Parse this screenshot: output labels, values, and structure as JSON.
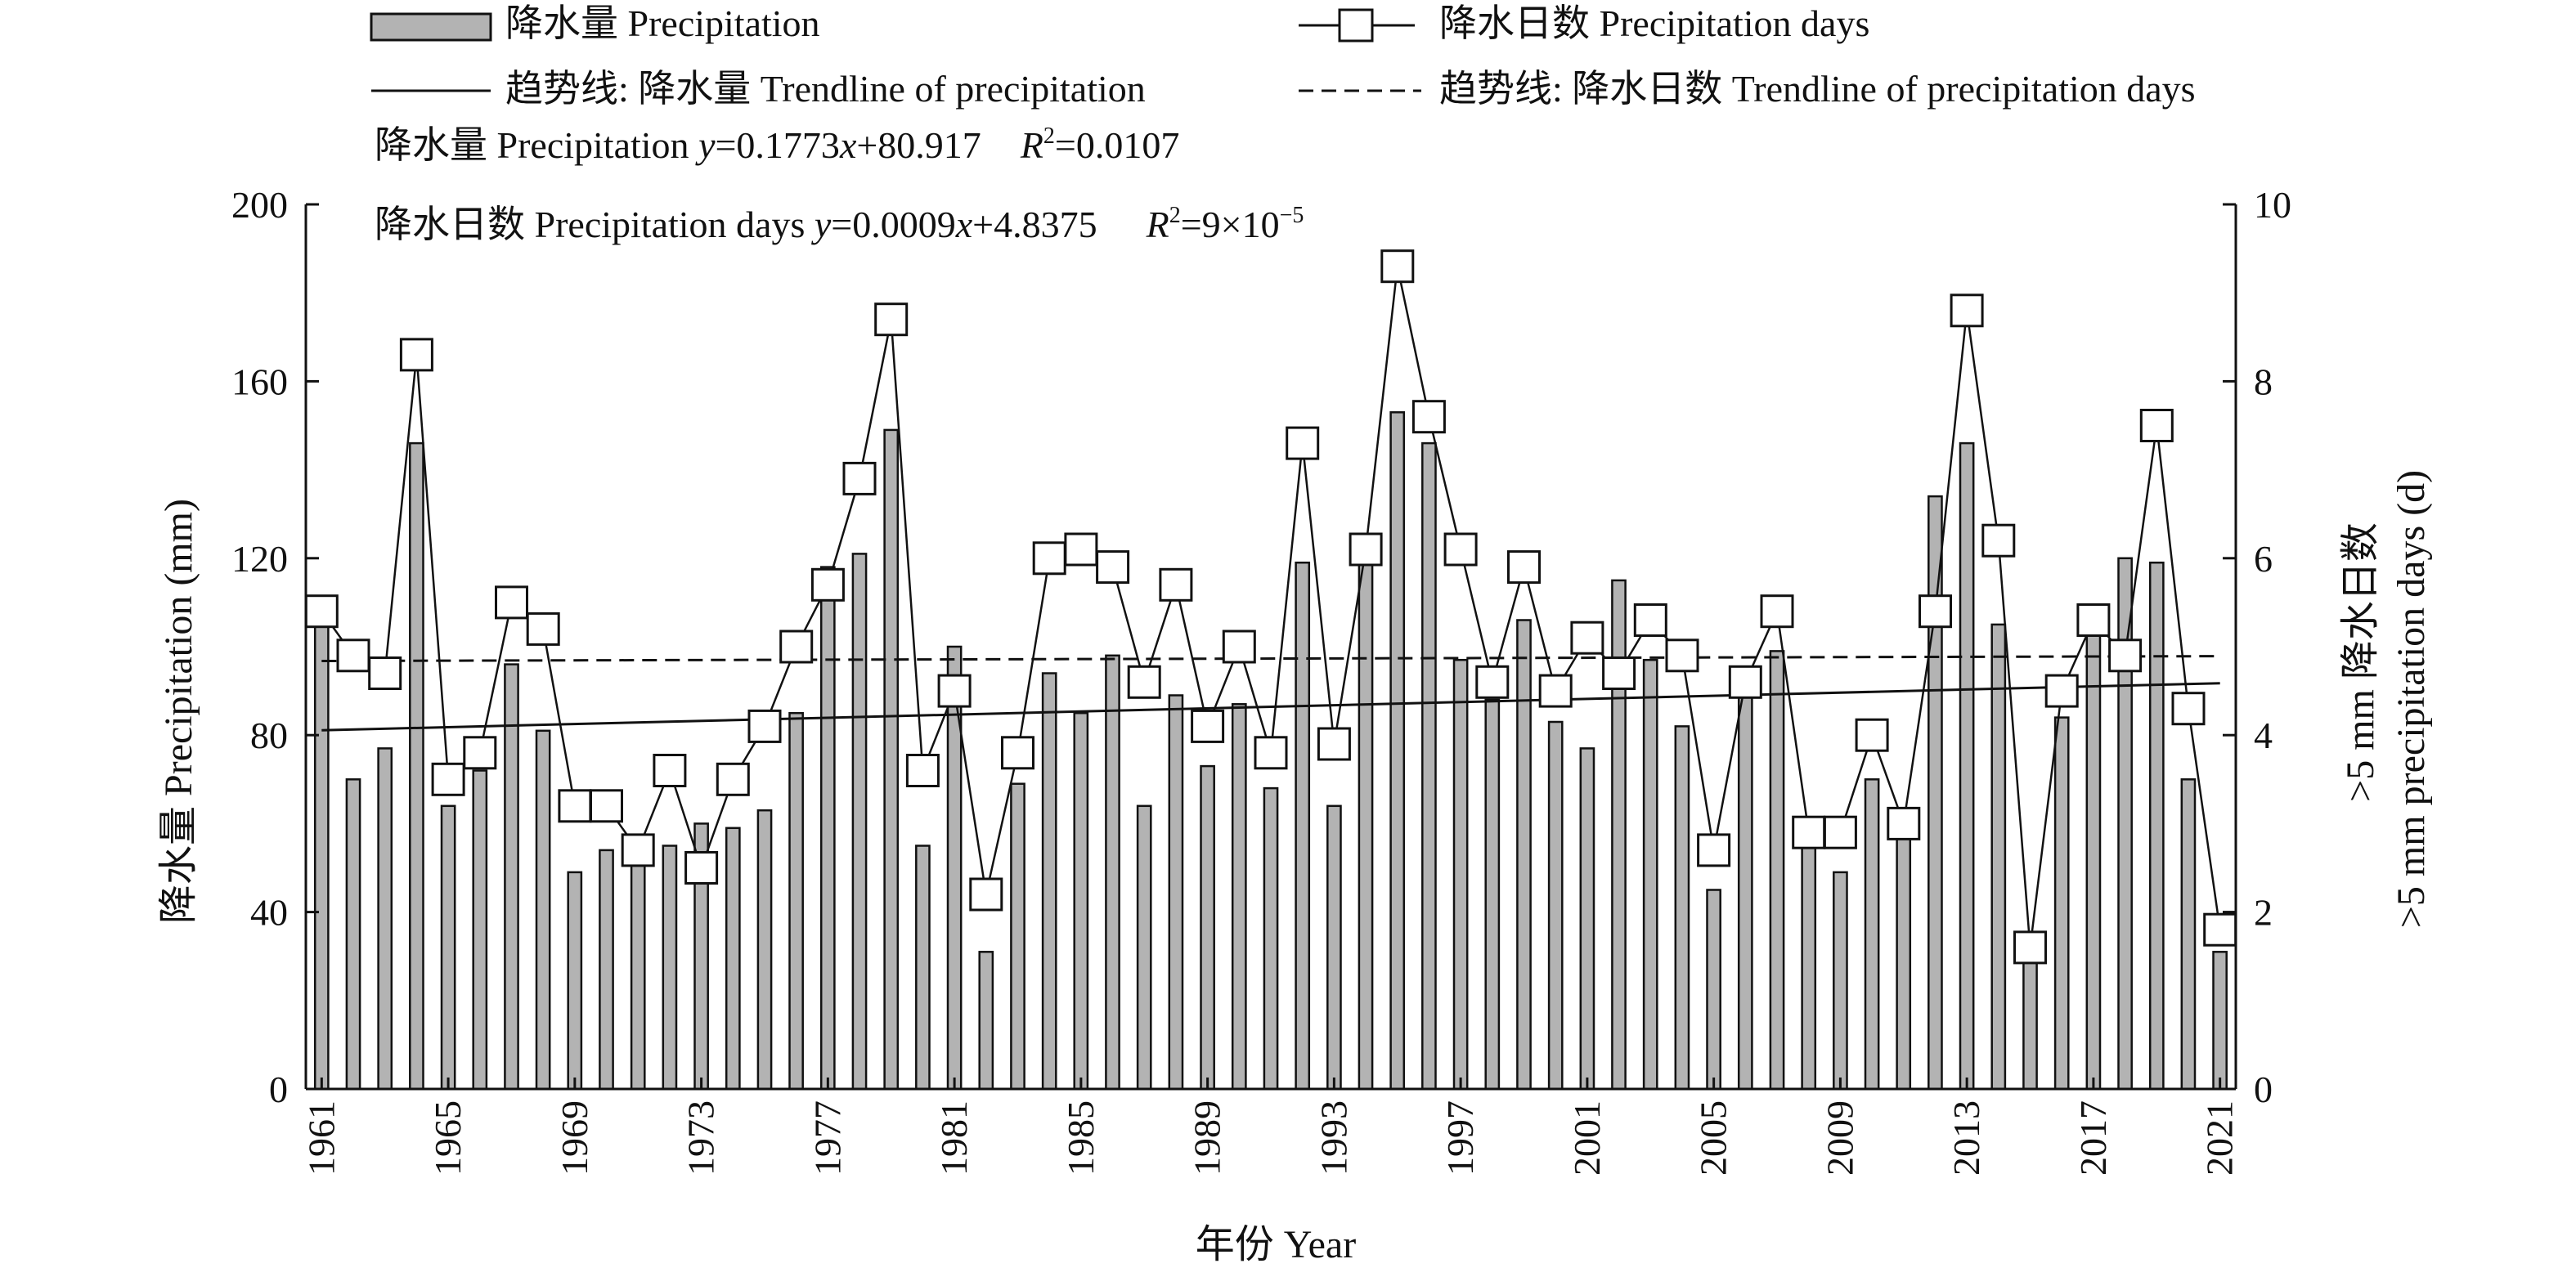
{
  "legend": {
    "bars": "降水量 Precipitation",
    "days": "降水日数 Precipitation days",
    "trend_precip": "趋势线: 降水量  Trendline of precipitation",
    "trend_days": "趋势线: 降水日数 Trendline of precipitation days"
  },
  "equations": {
    "precip_label": "降水量 Precipitation ",
    "precip_y": "y",
    "precip_mid": "=0.1773",
    "precip_x": "x",
    "precip_tail": "+80.917",
    "precip_r": "R",
    "precip_r_sup": "2",
    "precip_r_val": "=0.0107",
    "days_label": "降水日数 Precipitation days ",
    "days_y": "y",
    "days_mid": "=0.0009",
    "days_x": "x",
    "days_tail": "+4.8375",
    "days_r": "R",
    "days_r_sup": "2",
    "days_r_val": "=9×10",
    "days_r_exp": "−5"
  },
  "axes": {
    "y_left_label": "降水量 Precipitation (mm)",
    "y_right_label_1": ">5 mm 降水日数",
    "y_right_label_2": ">5 mm precipitation days (d)",
    "x_label": "年份 Year"
  },
  "chart_data": {
    "type": "bar",
    "years": [
      1961,
      1962,
      1963,
      1964,
      1965,
      1966,
      1967,
      1968,
      1969,
      1970,
      1971,
      1972,
      1973,
      1974,
      1975,
      1976,
      1977,
      1978,
      1979,
      1980,
      1981,
      1982,
      1983,
      1984,
      1985,
      1986,
      1987,
      1988,
      1989,
      1990,
      1991,
      1992,
      1993,
      1994,
      1995,
      1996,
      1997,
      1998,
      1999,
      2000,
      2001,
      2002,
      2003,
      2004,
      2005,
      2006,
      2007,
      2008,
      2009,
      2010,
      2011,
      2012,
      2013,
      2014,
      2015,
      2016,
      2017,
      2018,
      2019,
      2020,
      2021
    ],
    "series": [
      {
        "name": "降水量 Precipitation",
        "axis": "left",
        "type": "bar",
        "color": "#b3b3b3",
        "values": [
          105,
          70,
          77,
          146,
          64,
          72,
          96,
          81,
          49,
          54,
          51,
          55,
          60,
          59,
          63,
          85,
          118,
          121,
          149,
          55,
          100,
          31,
          69,
          94,
          85,
          98,
          64,
          89,
          73,
          87,
          68,
          119,
          64,
          119,
          153,
          146,
          97,
          88,
          106,
          83,
          77,
          115,
          97,
          82,
          45,
          92,
          99,
          56,
          49,
          70,
          57,
          134,
          146,
          105,
          33,
          84,
          104,
          120,
          119,
          70,
          31
        ]
      },
      {
        "name": "降水日数 Precipitation days",
        "axis": "right",
        "type": "line",
        "marker": "square",
        "values": [
          5.4,
          4.9,
          4.7,
          8.3,
          3.5,
          3.8,
          5.5,
          5.2,
          3.2,
          3.2,
          2.7,
          3.6,
          2.5,
          3.5,
          4.1,
          5.0,
          5.7,
          6.9,
          8.7,
          3.6,
          4.5,
          2.2,
          3.8,
          6.0,
          6.1,
          5.9,
          4.6,
          5.7,
          4.1,
          5.0,
          3.8,
          7.3,
          3.9,
          6.1,
          9.3,
          7.6,
          6.1,
          4.6,
          5.9,
          4.5,
          5.1,
          4.7,
          5.3,
          4.9,
          2.7,
          4.6,
          5.4,
          2.9,
          2.9,
          4.0,
          3.0,
          5.4,
          8.8,
          6.2,
          1.6,
          4.5,
          5.3,
          4.9,
          7.5,
          4.3,
          1.8
        ]
      }
    ],
    "trendlines": [
      {
        "name": "趋势线: 降水量 Trendline of precipitation",
        "axis": "left",
        "style": "solid",
        "slope": 0.1773,
        "intercept": 80.917
      },
      {
        "name": "趋势线: 降水日数 Trendline of precipitation days",
        "axis": "right",
        "style": "dashed",
        "slope": 0.0009,
        "intercept": 4.8375
      }
    ],
    "y_left": {
      "lim": [
        0,
        200
      ],
      "ticks": [
        0,
        40,
        80,
        120,
        160,
        200
      ]
    },
    "y_right": {
      "lim": [
        0,
        10
      ],
      "ticks": [
        0,
        2,
        4,
        6,
        8,
        10
      ]
    },
    "x_tick_labels": [
      "1961",
      "1965",
      "1969",
      "1973",
      "1977",
      "1981",
      "1985",
      "1989",
      "1993",
      "1997",
      "2001",
      "2005",
      "2009",
      "2013",
      "2017",
      "2021"
    ],
    "xlabel": "年份 Year",
    "ylabel": "降水量 Precipitation (mm)",
    "ylabel_right": ">5 mm 降水日数 >5 mm precipitation days (d)",
    "grid": false,
    "legend_position": "top"
  }
}
